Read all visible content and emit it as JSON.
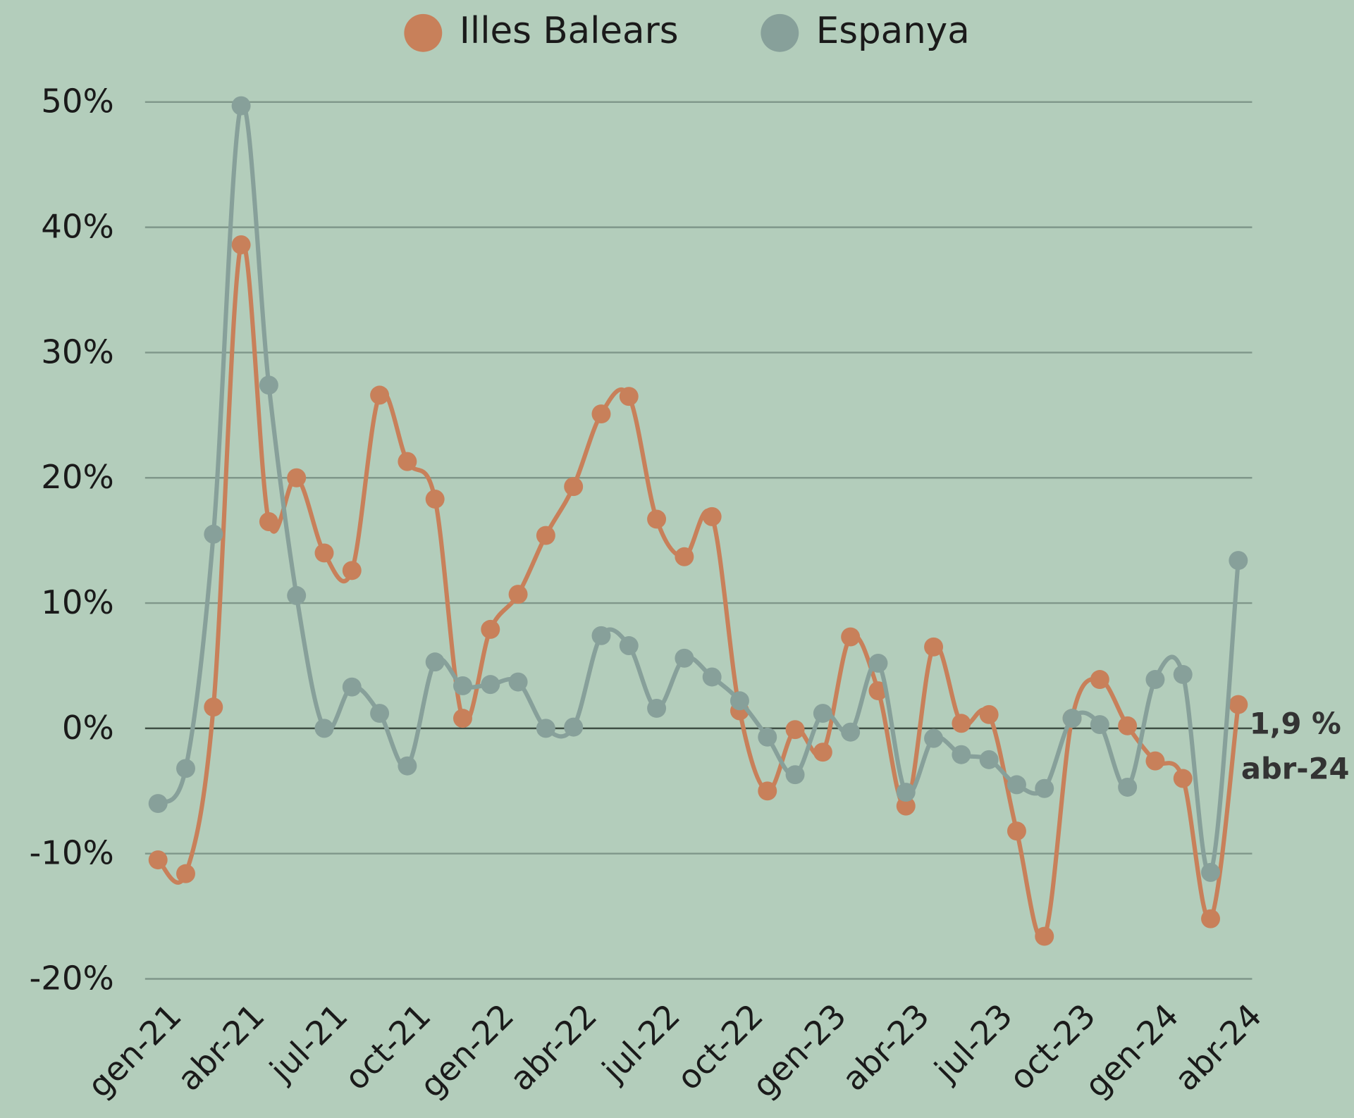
{
  "chart_data": {
    "type": "line",
    "categories": [
      "gen-21",
      null,
      null,
      "abr-21",
      null,
      null,
      "jul-21",
      null,
      null,
      "oct-21",
      null,
      null,
      "gen-22",
      null,
      null,
      "abr-22",
      null,
      null,
      "jul-22",
      null,
      null,
      "oct-22",
      null,
      null,
      "gen-23",
      null,
      null,
      "abr-23",
      null,
      null,
      "jul-23",
      null,
      null,
      "oct-23",
      null,
      null,
      "gen-24",
      null,
      null,
      "abr-24"
    ],
    "series": [
      {
        "name": "Illes Balears",
        "color": "#c8805a",
        "values": [
          -10.5,
          -11.6,
          1.7,
          38.6,
          16.5,
          20.0,
          14.0,
          12.6,
          26.6,
          21.3,
          18.3,
          0.8,
          7.9,
          10.7,
          15.4,
          19.3,
          25.1,
          26.5,
          16.7,
          13.7,
          16.9,
          1.4,
          -5.0,
          -0.1,
          -1.9,
          7.3,
          3.0,
          -6.2,
          6.5,
          0.4,
          1.1,
          -8.2,
          -16.6,
          0.8,
          3.9,
          0.2,
          -2.6,
          -4.0,
          -15.2,
          1.9
        ]
      },
      {
        "name": "Espanya",
        "color": "#87a09a",
        "values": [
          -6.0,
          -3.2,
          15.5,
          49.7,
          27.4,
          10.6,
          0.0,
          3.3,
          1.2,
          -3.0,
          5.3,
          3.4,
          3.5,
          3.7,
          0.0,
          0.1,
          7.4,
          6.6,
          1.6,
          5.6,
          4.1,
          2.2,
          -0.7,
          -3.7,
          1.2,
          -0.3,
          5.2,
          -5.1,
          -0.8,
          -2.1,
          -2.5,
          -4.5,
          -4.8,
          0.8,
          0.3,
          -4.7,
          3.9,
          4.3,
          -11.5,
          13.4
        ]
      }
    ],
    "ylim": [
      -20,
      50
    ],
    "yticks": [
      {
        "value": -20,
        "label": "-20%"
      },
      {
        "value": -10,
        "label": "-10%"
      },
      {
        "value": 0,
        "label": "0%"
      },
      {
        "value": 10,
        "label": "10%"
      },
      {
        "value": 20,
        "label": "20%"
      },
      {
        "value": 30,
        "label": "30%"
      },
      {
        "value": 40,
        "label": "40%"
      },
      {
        "value": 50,
        "label": "50%"
      }
    ],
    "grid": true,
    "legend": "top",
    "annotations": [
      "1,9 %",
      "abr-24"
    ]
  }
}
